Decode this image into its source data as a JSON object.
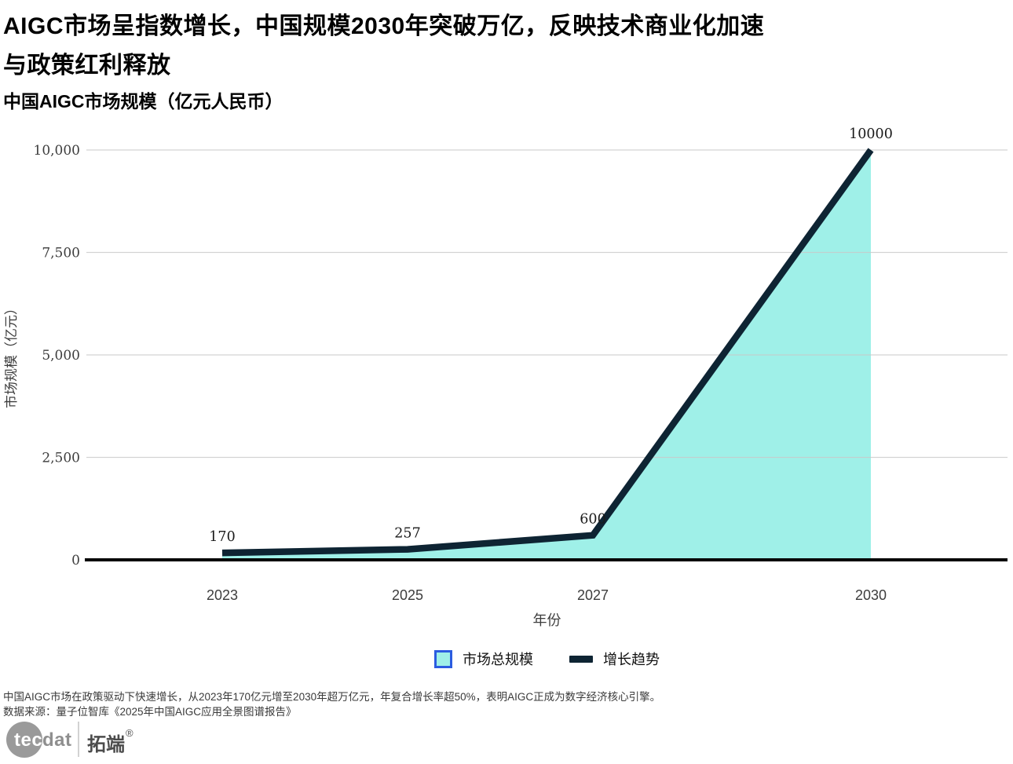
{
  "header": {
    "title_line1": "AIGC市场呈指数增长，中国规模2030年突破万亿，反映技术商业化加速",
    "title_line2": "与政策红利释放",
    "subtitle": "中国AIGC市场规模（亿元人民币）"
  },
  "chart_data": {
    "type": "area",
    "title": "中国AIGC市场规模（亿元人民币）",
    "x": [
      2023,
      2025,
      2027,
      2030
    ],
    "xtick_labels": [
      "2023",
      "2025",
      "2027",
      "2030"
    ],
    "values": [
      170,
      257,
      600,
      10000
    ],
    "point_labels": [
      "170",
      "257",
      "600",
      "10000"
    ],
    "series": [
      {
        "name": "市场总规模",
        "type": "area-fill",
        "values": [
          170,
          257,
          600,
          10000
        ]
      },
      {
        "name": "增长趋势",
        "type": "line",
        "values": [
          170,
          257,
          600,
          10000
        ]
      }
    ],
    "xlabel": "年份",
    "ylabel": "市场规模（亿元）",
    "ylim": [
      0,
      10000
    ],
    "yticks": [
      0,
      2500,
      5000,
      7500,
      10000
    ],
    "ytick_labels": [
      "0",
      "2,500",
      "5,000",
      "7,500",
      "10,000"
    ],
    "grid": "horizontal-only",
    "legend_position": "bottom"
  },
  "colors": {
    "area_fill": "#9ff0e8",
    "trend_line": "#0e2433",
    "axis_line": "#000000",
    "gridline": "#c9c9c9",
    "tick_text": "#3d3d3d",
    "label_text": "#1a1a1a",
    "legend_swatch_border": "#2b5ce0"
  },
  "legend": {
    "items": [
      {
        "label": "市场总规模",
        "swatch": "area"
      },
      {
        "label": "增长趋势",
        "swatch": "line"
      }
    ]
  },
  "footer": {
    "note": "中国AIGC市场在政策驱动下快速增长，从2023年170亿元增至2030年超万亿元，年复合增长率超50%，表明AIGC正成为数字经济核心引擎。",
    "source": "数据来源：量子位智库《2025年中国AIGC应用全景图谱报告》"
  },
  "logo": {
    "brand_left": "tec",
    "brand_right": "dat",
    "brand_cn": "拓端",
    "reg_mark": "®"
  }
}
